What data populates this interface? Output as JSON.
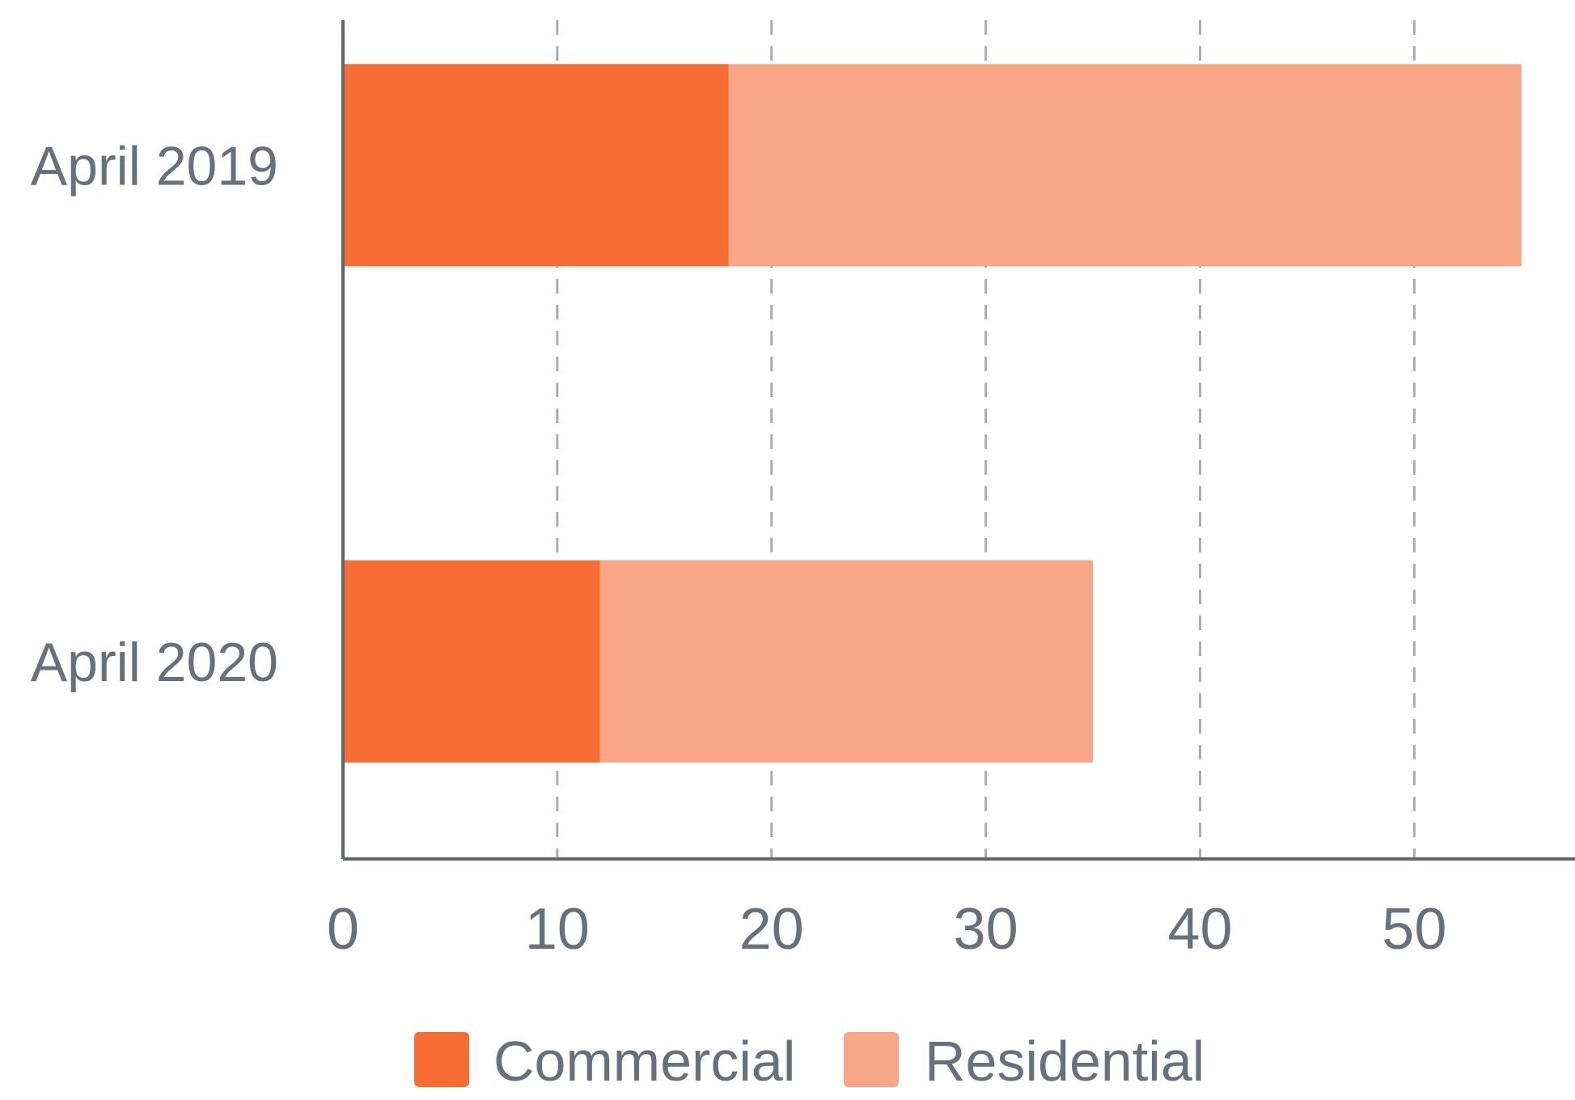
{
  "chart_data": {
    "type": "bar",
    "orientation": "horizontal",
    "stacked": true,
    "categories": [
      "April 2019",
      "April 2020"
    ],
    "series": [
      {
        "name": "Commercial",
        "values": [
          18,
          12
        ],
        "color": "#f86d34"
      },
      {
        "name": "Residential",
        "values": [
          37,
          23
        ],
        "color": "#f9a686"
      }
    ],
    "x_ticks": [
      "0",
      "10",
      "20",
      "30",
      "40",
      "50"
    ],
    "xlim": [
      0,
      57.5
    ],
    "grid": true,
    "legend": "bottom-center",
    "title": "",
    "xlabel": "",
    "ylabel": ""
  }
}
